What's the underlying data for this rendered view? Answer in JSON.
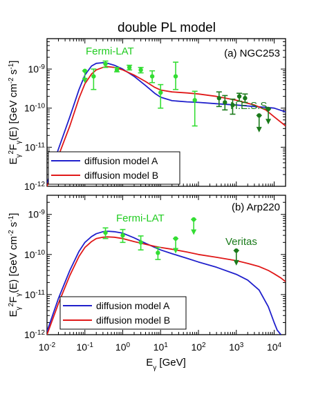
{
  "figure": {
    "title": "double PL model",
    "xlabel_main": "E",
    "xlabel_sub": "γ",
    "xlabel_unit": " [GeV]",
    "x_tick_labels": [
      {
        "base": "10",
        "exp": "-2"
      },
      {
        "base": "10",
        "exp": "-1"
      },
      {
        "base": "10",
        "exp": "0"
      },
      {
        "base": "10",
        "exp": "1"
      },
      {
        "base": "10",
        "exp": "2"
      },
      {
        "base": "10",
        "exp": "3"
      },
      {
        "base": "10",
        "exp": "4"
      }
    ]
  },
  "colors": {
    "model_a": "#1f1fcc",
    "model_b": "#e01818",
    "fermi": "#33dd33",
    "fermi_label": "#22cc22",
    "hess": "#1a7a1a",
    "veritas": "#1a7a1a",
    "axis": "#000000"
  },
  "chart_data": [
    {
      "type": "line",
      "panel_label": "(a) NGC253",
      "ylabel": "E_γ^2 F_γ(E) [GeV cm^-2 s^-1]",
      "xscale": "log",
      "yscale": "log",
      "xlim": [
        0.01,
        20000
      ],
      "ylim": [
        1e-12,
        6e-09
      ],
      "y_tick_labels": [
        {
          "base": "10",
          "exp": "-9",
          "value": 1e-09
        },
        {
          "base": "10",
          "exp": "-10",
          "value": 1e-10
        },
        {
          "base": "10",
          "exp": "-11",
          "value": 1e-11
        },
        {
          "base": "10",
          "exp": "-12",
          "value": 1e-12
        }
      ],
      "legend_position": "bottom-left",
      "series": [
        {
          "name": "diffusion model A",
          "color_key": "model_a",
          "x": [
            0.01,
            0.02,
            0.04,
            0.07,
            0.1,
            0.15,
            0.2,
            0.3,
            0.4,
            0.6,
            1,
            2,
            4,
            7,
            10,
            20,
            50,
            100,
            300,
            1000,
            3000,
            6000,
            10000,
            20000
          ],
          "y": [
            1.2e-12,
            9e-12,
            6e-11,
            3e-10,
            7e-10,
            1.2e-09,
            1.4e-09,
            1.45e-09,
            1.4e-09,
            1.25e-09,
            1e-09,
            6.5e-10,
            3.8e-10,
            2.4e-10,
            1.9e-10,
            1.55e-10,
            1.45e-10,
            1.4e-10,
            1.3e-10,
            1.2e-10,
            1.1e-10,
            1.05e-10,
            1e-10,
            8e-11
          ]
        },
        {
          "name": "diffusion model B",
          "color_key": "model_b",
          "x": [
            0.01,
            0.02,
            0.04,
            0.07,
            0.1,
            0.15,
            0.2,
            0.3,
            0.4,
            0.6,
            1,
            2,
            4,
            7,
            10,
            20,
            50,
            100,
            300,
            1000,
            3000,
            6000,
            10000,
            20000
          ],
          "y": [
            1e-12,
            6e-12,
            3.5e-11,
            1.8e-10,
            4.2e-10,
            7.5e-10,
            9.5e-10,
            1.1e-09,
            1.15e-09,
            1.1e-09,
            9.5e-10,
            7e-10,
            4.8e-10,
            3.4e-10,
            2.9e-10,
            2.6e-10,
            2.45e-10,
            2.3e-10,
            2e-10,
            1.6e-10,
            1.2e-10,
            9e-11,
            6e-11,
            3.5e-11
          ]
        }
      ],
      "annotations": [
        {
          "text": "Fermi-LAT",
          "color_key": "fermi_label"
        },
        {
          "text": "H.E.S.S.",
          "color_key": "hess"
        }
      ],
      "data_groups": [
        {
          "label": "Fermi-LAT",
          "color_key": "fermi",
          "points": [
            {
              "x": 0.1,
              "y": 9e-10,
              "ylo": 4.5e-10,
              "yhi": 1.2e-09,
              "upper_limit": true
            },
            {
              "x": 0.17,
              "y": 6.5e-10,
              "ylo": 3e-10,
              "yhi": 1e-09
            },
            {
              "x": 0.35,
              "y": 1.35e-09,
              "ylo": 1.1e-09,
              "yhi": 1.6e-09
            },
            {
              "x": 0.7,
              "y": 9.5e-10,
              "ylo": 8.5e-10,
              "yhi": 1.1e-09
            },
            {
              "x": 1.5,
              "y": 1.1e-09,
              "ylo": 9.5e-10,
              "yhi": 1.25e-09
            },
            {
              "x": 3,
              "y": 9.5e-10,
              "ylo": 8e-10,
              "yhi": 1.1e-09
            },
            {
              "x": 6,
              "y": 6.5e-10,
              "ylo": 4.5e-10,
              "yhi": 9e-10
            },
            {
              "x": 10,
              "y": 2.5e-10,
              "ylo": 1e-10,
              "yhi": 4e-10
            },
            {
              "x": 25,
              "y": 6.5e-10,
              "ylo": 3e-10,
              "yhi": 1.5e-09
            },
            {
              "x": 80,
              "y": 1.6e-10,
              "ylo": 3.5e-11,
              "yhi": 2.7e-10
            }
          ]
        },
        {
          "label": "H.E.S.S.",
          "color_key": "hess",
          "points": [
            {
              "x": 350,
              "y": 1.8e-10,
              "ylo": 1.1e-10,
              "yhi": 2.6e-10
            },
            {
              "x": 500,
              "y": 1.4e-10,
              "ylo": 9e-11,
              "yhi": 2.1e-10
            },
            {
              "x": 800,
              "y": 1.2e-10,
              "ylo": 7e-11,
              "yhi": 1.7e-10
            },
            {
              "x": 1200,
              "y": 2e-10,
              "ylo": 1.5e-10,
              "yhi": 2.4e-10
            },
            {
              "x": 1700,
              "y": 1.8e-10,
              "ylo": 1.4e-10,
              "yhi": 2.3e-10
            },
            {
              "x": 4000,
              "y": 6.5e-11,
              "ylo": 2.5e-11,
              "yhi": 6.5e-11,
              "upper_limit": true
            },
            {
              "x": 7000,
              "y": 9.5e-11,
              "ylo": 4e-11,
              "yhi": 9.5e-11,
              "upper_limit": true
            }
          ]
        }
      ]
    },
    {
      "type": "line",
      "panel_label": "(b) Arp220",
      "ylabel": "E_γ^2 F_γ(E) [GeV cm^-2 s^-1]",
      "xscale": "log",
      "yscale": "log",
      "xlim": [
        0.01,
        20000
      ],
      "ylim": [
        1e-12,
        3e-09
      ],
      "y_tick_labels": [
        {
          "base": "10",
          "exp": "-9",
          "value": 1e-09
        },
        {
          "base": "10",
          "exp": "-10",
          "value": 1e-10
        },
        {
          "base": "10",
          "exp": "-11",
          "value": 1e-11
        },
        {
          "base": "10",
          "exp": "-12",
          "value": 1e-12
        }
      ],
      "legend_position": "bottom-left",
      "series": [
        {
          "name": "diffusion model A",
          "color_key": "model_a",
          "x": [
            0.01,
            0.02,
            0.04,
            0.07,
            0.1,
            0.15,
            0.2,
            0.3,
            0.4,
            0.6,
            1,
            2,
            4,
            7,
            10,
            20,
            50,
            100,
            300,
            1000,
            2000,
            4000,
            7000,
            10000,
            12000,
            15000
          ],
          "y": [
            1.2e-12,
            8e-12,
            4e-11,
            1.2e-10,
            2e-10,
            2.8e-10,
            3.3e-10,
            3.7e-10,
            3.8e-10,
            3.7e-10,
            3.4e-10,
            2.6e-10,
            1.9e-10,
            1.5e-10,
            1.3e-10,
            1.05e-10,
            8e-11,
            6.5e-11,
            4.8e-11,
            3.2e-11,
            2.3e-11,
            1.3e-11,
            5e-12,
            2e-12,
            1.3e-12,
            1e-12
          ]
        },
        {
          "name": "diffusion model B",
          "color_key": "model_b",
          "x": [
            0.01,
            0.02,
            0.04,
            0.07,
            0.1,
            0.15,
            0.2,
            0.3,
            0.4,
            0.6,
            1,
            2,
            4,
            7,
            10,
            20,
            50,
            100,
            300,
            1000,
            2000,
            4000,
            7000,
            10000,
            15000,
            20000
          ],
          "y": [
            1e-12,
            6e-12,
            3e-11,
            9e-11,
            1.5e-10,
            2.1e-10,
            2.5e-10,
            2.7e-10,
            2.75e-10,
            2.7e-10,
            2.5e-10,
            2.1e-10,
            1.8e-10,
            1.6e-10,
            1.5e-10,
            1.35e-10,
            1.15e-10,
            1e-10,
            8.5e-11,
            7e-11,
            6e-11,
            5e-11,
            4e-11,
            3.3e-11,
            2.6e-11,
            2.1e-11
          ]
        }
      ],
      "annotations": [
        {
          "text": "Fermi-LAT",
          "color_key": "fermi_label"
        },
        {
          "text": "Veritas",
          "color_key": "veritas"
        }
      ],
      "data_groups": [
        {
          "label": "Fermi-LAT",
          "color_key": "fermi",
          "points": [
            {
              "x": 0.35,
              "y": 3.5e-10,
              "ylo": 2.5e-10,
              "yhi": 4.6e-10
            },
            {
              "x": 1,
              "y": 3e-10,
              "ylo": 2e-10,
              "yhi": 4.2e-10
            },
            {
              "x": 3,
              "y": 2e-10,
              "ylo": 1.3e-10,
              "yhi": 2.9e-10
            },
            {
              "x": 8.5,
              "y": 1.1e-10,
              "ylo": 7.5e-11,
              "yhi": 1.5e-10
            },
            {
              "x": 25,
              "y": 2.5e-10,
              "ylo": 1.1e-10,
              "yhi": 2.5e-10,
              "upper_limit": true
            },
            {
              "x": 75,
              "y": 7.5e-10,
              "ylo": 3.2e-10,
              "yhi": 7.5e-10,
              "upper_limit": true
            }
          ]
        },
        {
          "label": "Veritas",
          "color_key": "veritas",
          "points": [
            {
              "x": 1000,
              "y": 1.25e-10,
              "ylo": 5.5e-11,
              "yhi": 1.25e-10,
              "upper_limit": true
            }
          ]
        }
      ]
    }
  ]
}
